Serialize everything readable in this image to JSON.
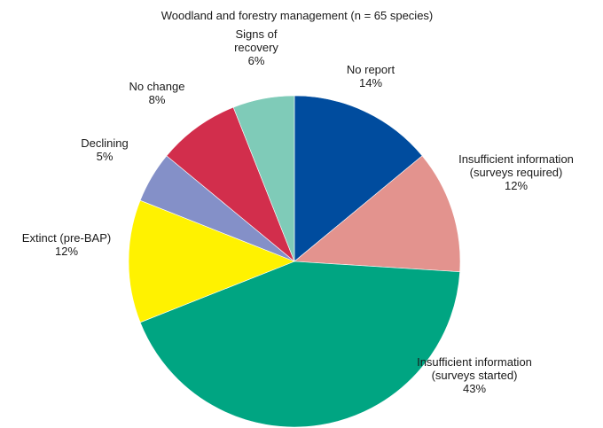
{
  "chart_data": {
    "type": "pie",
    "title": "Woodland and forestry management (n = 65 species)",
    "slices": [
      {
        "label": [
          "No report"
        ],
        "value": 14,
        "display": "14%",
        "color": "#004c9e"
      },
      {
        "label": [
          "Insufficient information",
          "(surveys required)"
        ],
        "value": 12,
        "display": "12%",
        "color": "#e3938e"
      },
      {
        "label": [
          "Insufficient information",
          "(surveys started)"
        ],
        "value": 43,
        "display": "43%",
        "color": "#00a582"
      },
      {
        "label": [
          "Extinct (pre-BAP)"
        ],
        "value": 12,
        "display": "12%",
        "color": "#fff200"
      },
      {
        "label": [
          "Declining"
        ],
        "value": 5,
        "display": "5%",
        "color": "#8490c8"
      },
      {
        "label": [
          "No change"
        ],
        "value": 8,
        "display": "8%",
        "color": "#d22e4c"
      },
      {
        "label": [
          "Signs of",
          "recovery"
        ],
        "value": 6,
        "display": "6%",
        "color": "#7fcbb8"
      }
    ]
  }
}
